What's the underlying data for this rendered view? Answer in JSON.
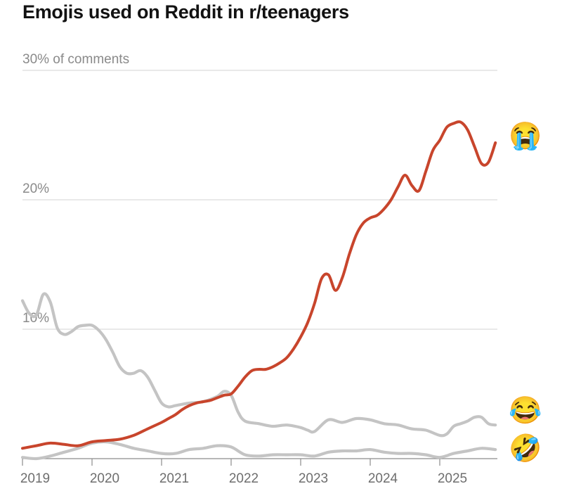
{
  "chart_data": {
    "type": "line",
    "title": "Emojis used on Reddit in r/teenagers",
    "unit_label": "30% of comments",
    "ylim": [
      0,
      30
    ],
    "y_ticks": [
      {
        "value": 30,
        "label": "30% of comments"
      },
      {
        "value": 20,
        "label": "20%"
      },
      {
        "value": 10,
        "label": "10%"
      }
    ],
    "x_ticks": [
      {
        "value": 2019,
        "label": "2019"
      },
      {
        "value": 2020,
        "label": "2020"
      },
      {
        "value": 2021,
        "label": "2021"
      },
      {
        "value": 2022,
        "label": "2022"
      },
      {
        "value": 2023,
        "label": "2023"
      },
      {
        "value": 2024,
        "label": "2024"
      },
      {
        "value": 2025,
        "label": "2025"
      }
    ],
    "xlim": [
      2019.0,
      2025.8
    ],
    "grid": true,
    "series": [
      {
        "emoji": "😭",
        "emoji_name": "loudly-crying-face",
        "color": "#c8452c",
        "x": [
          2019.0,
          2019.2,
          2019.4,
          2019.6,
          2019.8,
          2020.0,
          2020.2,
          2020.4,
          2020.6,
          2020.8,
          2021.0,
          2021.1,
          2021.2,
          2021.3,
          2021.4,
          2021.5,
          2021.6,
          2021.7,
          2021.8,
          2021.9,
          2022.0,
          2022.1,
          2022.2,
          2022.3,
          2022.4,
          2022.5,
          2022.6,
          2022.7,
          2022.8,
          2022.9,
          2023.0,
          2023.1,
          2023.2,
          2023.3,
          2023.4,
          2023.5,
          2023.6,
          2023.7,
          2023.8,
          2023.9,
          2024.0,
          2024.1,
          2024.2,
          2024.3,
          2024.4,
          2024.5,
          2024.6,
          2024.7,
          2024.8,
          2024.9,
          2025.0,
          2025.1,
          2025.2,
          2025.3,
          2025.4,
          2025.5,
          2025.6,
          2025.7,
          2025.8
        ],
        "y": [
          0.8,
          1.0,
          1.2,
          1.1,
          1.0,
          1.3,
          1.4,
          1.5,
          1.8,
          2.3,
          2.8,
          3.1,
          3.4,
          3.8,
          4.1,
          4.3,
          4.4,
          4.5,
          4.7,
          4.9,
          5.0,
          5.6,
          6.3,
          6.8,
          6.9,
          6.9,
          7.1,
          7.4,
          7.8,
          8.5,
          9.4,
          10.5,
          12.0,
          13.9,
          14.2,
          13.0,
          14.0,
          15.8,
          17.3,
          18.2,
          18.6,
          18.8,
          19.3,
          20.0,
          21.0,
          21.9,
          21.1,
          20.7,
          22.2,
          23.8,
          24.6,
          25.6,
          25.9,
          26.0,
          25.4,
          24.1,
          22.8,
          22.9,
          24.4
        ]
      },
      {
        "emoji": "😂",
        "emoji_name": "face-with-tears-of-joy",
        "color": "#c4c4c4",
        "x": [
          2019.0,
          2019.1,
          2019.2,
          2019.3,
          2019.4,
          2019.5,
          2019.6,
          2019.7,
          2019.8,
          2019.9,
          2020.0,
          2020.1,
          2020.2,
          2020.3,
          2020.4,
          2020.5,
          2020.6,
          2020.7,
          2020.8,
          2020.9,
          2021.0,
          2021.1,
          2021.2,
          2021.4,
          2021.6,
          2021.8,
          2021.9,
          2022.0,
          2022.1,
          2022.2,
          2022.4,
          2022.6,
          2022.8,
          2023.0,
          2023.1,
          2023.2,
          2023.4,
          2023.6,
          2023.8,
          2024.0,
          2024.2,
          2024.4,
          2024.6,
          2024.8,
          2025.0,
          2025.1,
          2025.2,
          2025.3,
          2025.4,
          2025.5,
          2025.6,
          2025.7,
          2025.8
        ],
        "y": [
          12.2,
          11.2,
          11.1,
          12.7,
          12.1,
          10.1,
          9.6,
          9.8,
          10.2,
          10.3,
          10.3,
          9.9,
          9.2,
          8.2,
          7.1,
          6.6,
          6.6,
          6.8,
          6.3,
          5.3,
          4.3,
          4.0,
          4.1,
          4.3,
          4.4,
          4.8,
          5.2,
          4.9,
          3.6,
          2.9,
          2.7,
          2.5,
          2.6,
          2.4,
          2.2,
          2.1,
          3.0,
          2.8,
          3.1,
          3.0,
          2.7,
          2.6,
          2.3,
          2.2,
          1.8,
          1.9,
          2.5,
          2.7,
          2.9,
          3.2,
          3.2,
          2.7,
          2.6
        ]
      },
      {
        "emoji": "🤣",
        "emoji_name": "rolling-on-the-floor-laughing",
        "color": "#c4c4c4",
        "x": [
          2019.0,
          2019.2,
          2019.4,
          2019.6,
          2019.8,
          2020.0,
          2020.2,
          2020.4,
          2020.6,
          2020.8,
          2021.0,
          2021.2,
          2021.4,
          2021.6,
          2021.8,
          2022.0,
          2022.2,
          2022.4,
          2022.6,
          2022.8,
          2023.0,
          2023.2,
          2023.4,
          2023.6,
          2023.8,
          2024.0,
          2024.2,
          2024.4,
          2024.6,
          2024.8,
          2025.0,
          2025.2,
          2025.4,
          2025.6,
          2025.8
        ],
        "y": [
          0.1,
          0.0,
          0.2,
          0.5,
          0.8,
          1.2,
          1.3,
          1.1,
          0.8,
          0.6,
          0.4,
          0.4,
          0.7,
          0.8,
          1.0,
          0.9,
          0.3,
          0.2,
          0.3,
          0.3,
          0.3,
          0.2,
          0.5,
          0.6,
          0.6,
          0.7,
          0.5,
          0.4,
          0.4,
          0.3,
          0.1,
          0.4,
          0.6,
          0.8,
          0.7
        ]
      }
    ]
  }
}
